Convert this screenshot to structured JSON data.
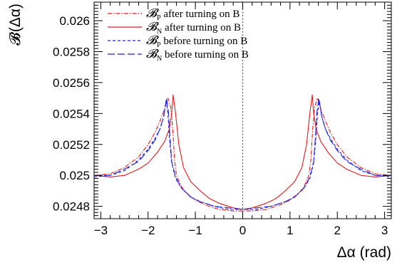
{
  "chart_data": {
    "type": "line",
    "title": "",
    "xlabel": "Δα (rad)",
    "ylabel": "𝓑(Δα)",
    "xlim": [
      -3.14159,
      3.14159
    ],
    "ylim": [
      0.02472,
      0.02612
    ],
    "xticks": [
      -3,
      -2,
      -1,
      0,
      1,
      2,
      3
    ],
    "xtick_labels": [
      "−3",
      "−2",
      "−1",
      "0",
      "1",
      "2",
      "3"
    ],
    "yticks": [
      0.0248,
      0.025,
      0.0252,
      0.0254,
      0.0256,
      0.0258,
      0.026
    ],
    "ytick_labels": [
      "0.0248",
      "0.025",
      "0.0252",
      "0.0254",
      "0.0256",
      "0.0258",
      "0.026"
    ],
    "grid": false,
    "legend_position": "top-center",
    "reference_line": {
      "x": 0,
      "style": "dotted",
      "color": "#555555"
    },
    "series": [
      {
        "name": "𝓑P after turning on B",
        "name_main": "𝓑",
        "name_sub": "P",
        "name_rest": " after turning on B",
        "color": "#e41a1c",
        "dash": "6,2,1.5,2",
        "x": [
          -3.14,
          -2.8,
          -2.5,
          -2.2,
          -2.0,
          -1.85,
          -1.75,
          -1.65,
          -1.58,
          -1.52,
          -1.48,
          -1.44,
          -1.4,
          -1.3,
          -1.2,
          -1.0,
          -0.8,
          -0.5,
          -0.2,
          0.0,
          0.2,
          0.5,
          0.8,
          1.0,
          1.2,
          1.3,
          1.4,
          1.44,
          1.48,
          1.52,
          1.58,
          1.65,
          1.75,
          1.85,
          2.0,
          2.2,
          2.5,
          2.8,
          3.14
        ],
        "y": [
          0.025,
          0.02501,
          0.02505,
          0.02512,
          0.0252,
          0.02528,
          0.02535,
          0.02543,
          0.0255,
          0.02544,
          0.0253,
          0.0251,
          0.025,
          0.02493,
          0.02489,
          0.02484,
          0.02481,
          0.02478,
          0.02477,
          0.02477,
          0.02477,
          0.02478,
          0.02481,
          0.02484,
          0.02489,
          0.02493,
          0.025,
          0.0251,
          0.0253,
          0.02544,
          0.0255,
          0.02543,
          0.02535,
          0.02528,
          0.0252,
          0.02512,
          0.02505,
          0.02501,
          0.025
        ]
      },
      {
        "name": "𝓑N after turning on B",
        "name_main": "𝓑",
        "name_sub": "N",
        "name_rest": " after turning on B",
        "color": "#e41a1c",
        "dash": "",
        "x": [
          -3.14,
          -2.8,
          -2.5,
          -2.2,
          -2.0,
          -1.8,
          -1.65,
          -1.55,
          -1.5,
          -1.47,
          -1.42,
          -1.35,
          -1.25,
          -1.1,
          -0.9,
          -0.7,
          -0.5,
          -0.2,
          0.0,
          0.2,
          0.5,
          0.7,
          0.9,
          1.1,
          1.25,
          1.35,
          1.42,
          1.47,
          1.5,
          1.55,
          1.65,
          1.8,
          2.0,
          2.2,
          2.5,
          2.8,
          3.14
        ],
        "y": [
          0.025,
          0.02499,
          0.025,
          0.02504,
          0.02508,
          0.02515,
          0.02522,
          0.0253,
          0.0254,
          0.02552,
          0.0254,
          0.0252,
          0.02505,
          0.02496,
          0.0249,
          0.02485,
          0.02482,
          0.02479,
          0.02478,
          0.02479,
          0.02482,
          0.02485,
          0.0249,
          0.02496,
          0.02505,
          0.0252,
          0.0254,
          0.02552,
          0.0254,
          0.0253,
          0.02522,
          0.02515,
          0.02508,
          0.02504,
          0.025,
          0.02499,
          0.025
        ]
      },
      {
        "name": "𝓑P before turning on B",
        "name_main": "𝓑",
        "name_sub": "P",
        "name_rest": " before turning on B",
        "color": "#1f1fe0",
        "dash": "4,3",
        "x": [
          -3.14,
          -2.8,
          -2.5,
          -2.2,
          -2.0,
          -1.85,
          -1.75,
          -1.68,
          -1.62,
          -1.58,
          -1.55,
          -1.5,
          -1.42,
          -1.3,
          -1.1,
          -0.9,
          -0.6,
          -0.3,
          0.0,
          0.3,
          0.6,
          0.9,
          1.1,
          1.3,
          1.42,
          1.5,
          1.55,
          1.58,
          1.62,
          1.68,
          1.75,
          1.85,
          2.0,
          2.2,
          2.5,
          2.8,
          3.14
        ],
        "y": [
          0.02499,
          0.025,
          0.02503,
          0.0251,
          0.02517,
          0.02524,
          0.0253,
          0.02537,
          0.02548,
          0.0254,
          0.02525,
          0.02508,
          0.02498,
          0.02492,
          0.02486,
          0.02483,
          0.0248,
          0.02478,
          0.02478,
          0.02478,
          0.0248,
          0.02483,
          0.02486,
          0.02492,
          0.02498,
          0.02508,
          0.02525,
          0.0254,
          0.02548,
          0.02537,
          0.0253,
          0.02524,
          0.02517,
          0.0251,
          0.02503,
          0.025,
          0.02499
        ]
      },
      {
        "name": "𝓑N before turning on B",
        "name_main": "𝓑",
        "name_sub": "N",
        "name_rest": " before turning on B",
        "color": "#1f1fe0",
        "dash": "10,4",
        "x": [
          -3.14,
          -2.8,
          -2.5,
          -2.2,
          -2.0,
          -1.85,
          -1.75,
          -1.67,
          -1.61,
          -1.57,
          -1.54,
          -1.5,
          -1.42,
          -1.3,
          -1.1,
          -0.9,
          -0.6,
          -0.3,
          0.0,
          0.3,
          0.6,
          0.9,
          1.1,
          1.3,
          1.42,
          1.5,
          1.54,
          1.57,
          1.61,
          1.67,
          1.75,
          1.85,
          2.0,
          2.2,
          2.5,
          2.8,
          3.14
        ],
        "y": [
          0.025,
          0.025,
          0.02504,
          0.02509,
          0.02516,
          0.02523,
          0.0253,
          0.02538,
          0.0255,
          0.02541,
          0.02526,
          0.02509,
          0.02499,
          0.02492,
          0.02486,
          0.02483,
          0.0248,
          0.02479,
          0.02478,
          0.02479,
          0.0248,
          0.02483,
          0.02486,
          0.02492,
          0.02499,
          0.02509,
          0.02526,
          0.02541,
          0.0255,
          0.02538,
          0.0253,
          0.02523,
          0.02516,
          0.02509,
          0.02504,
          0.025,
          0.025
        ]
      }
    ]
  }
}
